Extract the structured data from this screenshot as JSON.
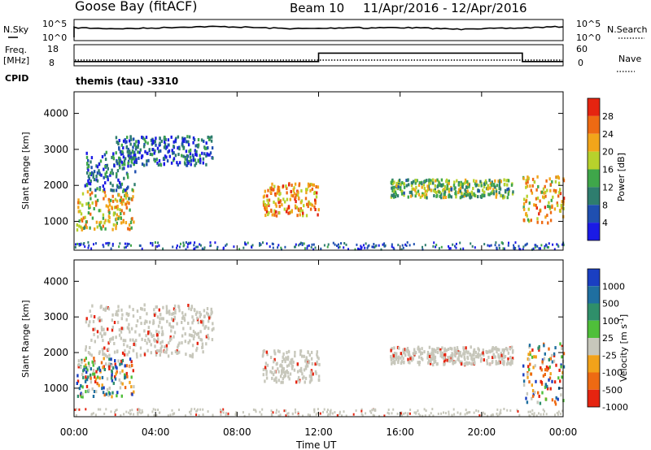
{
  "header": {
    "station": "Goose Bay (fitACF)",
    "beam": "Beam 10",
    "date_range": "11/Apr/2016 - 12/Apr/2016"
  },
  "top_panel": {
    "nsky_label": "N.Sky",
    "nsearch_label": "N.Search",
    "freq_label_line1": "Freq.",
    "freq_label_line2": "[MHz]",
    "nave_label": "Nave",
    "cpid_label": "CPID",
    "cpid_value": "themis (tau) -3310",
    "noise_ticks_left": [
      "10^5",
      "10^0"
    ],
    "noise_ticks_right": [
      "10^5",
      "10^0"
    ],
    "freq_ticks_left": [
      "18",
      "8"
    ],
    "freq_ticks_right": [
      "60",
      "0"
    ]
  },
  "x_axis": {
    "label": "Time UT",
    "ticks": [
      "00:00",
      "04:00",
      "08:00",
      "12:00",
      "16:00",
      "20:00",
      "00:00"
    ]
  },
  "colors": {
    "power_scale": [
      "#1a1ae6",
      "#1f4fb0",
      "#2e7d6e",
      "#3fa64a",
      "#b7d12c",
      "#f2a51a",
      "#ee6a13",
      "#e52410"
    ],
    "velocity_scale": [
      "#1a3fc2",
      "#1f6fa0",
      "#2f8f6a",
      "#4fbf3a",
      "#c7c7bb",
      "#f2a21a",
      "#ee6a13",
      "#e52410"
    ]
  },
  "chart_data": [
    {
      "type": "line",
      "title": "N.Sky / N.Search",
      "xlabel": "Time UT",
      "ylabel": "N.Sky",
      "ylim": [
        "10^0",
        "10^5"
      ],
      "series": [
        {
          "name": "N.Sky",
          "x": [
            "00:00",
            "12:00",
            "24:00"
          ],
          "values": [
            "~10^4",
            "~10^4",
            "~10^4"
          ]
        }
      ]
    },
    {
      "type": "line",
      "title": "Freq. / Nave",
      "ylabel": "Freq. [MHz]",
      "ylim": [
        8,
        18
      ],
      "series": [
        {
          "name": "Freq.",
          "x": [
            "00:00",
            "12:00",
            "12:00",
            "22:00",
            "22:00",
            "24:00"
          ],
          "values": [
            10,
            10,
            14,
            14,
            10,
            10
          ]
        },
        {
          "name": "Nave",
          "x": [
            "00:00",
            "24:00"
          ],
          "values": [
            10,
            10
          ]
        }
      ]
    },
    {
      "type": "heatmap",
      "ylabel": "Slant Range [km]",
      "xlabel": "Time UT",
      "yticks": [
        1000,
        2000,
        3000,
        4000
      ],
      "ylim": [
        200,
        4600
      ],
      "colorbar": {
        "label": "Power [dB]",
        "ticks": [
          4,
          8,
          12,
          16,
          20,
          24,
          28
        ],
        "range": [
          0,
          30
        ]
      },
      "regions": [
        {
          "t": [
            0.1,
            2.9
          ],
          "range_km": [
            800,
            1900
          ],
          "power_db": 18
        },
        {
          "t": [
            0.5,
            3.0
          ],
          "range_km": [
            1900,
            3000
          ],
          "power_db": 8
        },
        {
          "t": [
            2.0,
            6.8
          ],
          "range_km": [
            2600,
            3400
          ],
          "power_db": 6
        },
        {
          "t": [
            9.2,
            12.0
          ],
          "range_km": [
            1200,
            2100
          ],
          "power_db": 22
        },
        {
          "t": [
            15.5,
            21.5
          ],
          "range_km": [
            1700,
            2200
          ],
          "power_db": 14
        },
        {
          "t": [
            22.0,
            24.0
          ],
          "range_km": [
            1000,
            2300
          ],
          "power_db": 20
        }
      ]
    },
    {
      "type": "heatmap",
      "ylabel": "Slant Range [km]",
      "xlabel": "Time UT",
      "yticks": [
        1000,
        2000,
        3000,
        4000
      ],
      "ylim": [
        200,
        4600
      ],
      "colorbar": {
        "label": "Velocity [m s^-1]",
        "ticks": [
          1000,
          500,
          100,
          25,
          -25,
          -100,
          -500,
          -1000
        ]
      },
      "regions": [
        {
          "t": [
            0.1,
            2.9
          ],
          "range_km": [
            800,
            1900
          ],
          "velocity": -100
        },
        {
          "t": [
            0.5,
            6.8
          ],
          "range_km": [
            1900,
            3400
          ],
          "velocity": 0
        },
        {
          "t": [
            9.2,
            12.0
          ],
          "range_km": [
            1200,
            2100
          ],
          "velocity": 0
        },
        {
          "t": [
            15.5,
            21.5
          ],
          "range_km": [
            1700,
            2200
          ],
          "velocity": 0
        },
        {
          "t": [
            22.0,
            24.0
          ],
          "range_km": [
            600,
            2300
          ],
          "velocity": 100
        }
      ]
    }
  ]
}
